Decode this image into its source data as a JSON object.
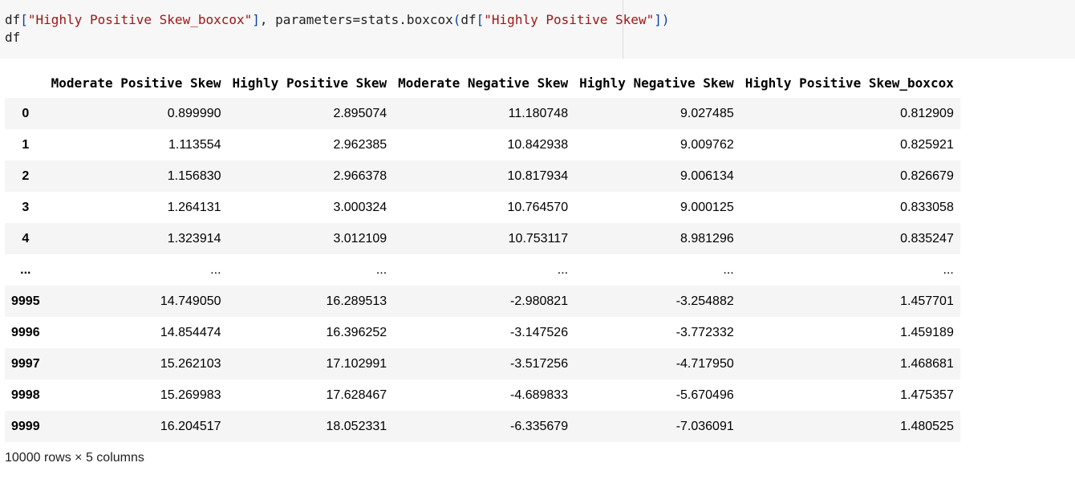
{
  "code": {
    "line1": {
      "t1": "df",
      "t2": "[",
      "t3": "\"Highly Positive Skew_boxcox\"",
      "t4": "]",
      "t5": ", parameters=stats.boxcox",
      "t6": "(",
      "t7": "df",
      "t8": "[",
      "t9": "\"Highly Positive Skew\"",
      "t10": "]",
      "t11": ")"
    },
    "line2": "df"
  },
  "dataframe": {
    "columns": [
      "Moderate Positive Skew",
      "Highly Positive Skew",
      "Moderate Negative Skew",
      "Highly Negative Skew",
      "Highly Positive Skew_boxcox"
    ],
    "rows": [
      {
        "index": "0",
        "values": [
          "0.899990",
          "2.895074",
          "11.180748",
          "9.027485",
          "0.812909"
        ]
      },
      {
        "index": "1",
        "values": [
          "1.113554",
          "2.962385",
          "10.842938",
          "9.009762",
          "0.825921"
        ]
      },
      {
        "index": "2",
        "values": [
          "1.156830",
          "2.966378",
          "10.817934",
          "9.006134",
          "0.826679"
        ]
      },
      {
        "index": "3",
        "values": [
          "1.264131",
          "3.000324",
          "10.764570",
          "9.000125",
          "0.833058"
        ]
      },
      {
        "index": "4",
        "values": [
          "1.323914",
          "3.012109",
          "10.753117",
          "8.981296",
          "0.835247"
        ]
      },
      {
        "index": "...",
        "values": [
          "...",
          "...",
          "...",
          "...",
          "..."
        ]
      },
      {
        "index": "9995",
        "values": [
          "14.749050",
          "16.289513",
          "-2.980821",
          "-3.254882",
          "1.457701"
        ]
      },
      {
        "index": "9996",
        "values": [
          "14.854474",
          "16.396252",
          "-3.147526",
          "-3.772332",
          "1.459189"
        ]
      },
      {
        "index": "9997",
        "values": [
          "15.262103",
          "17.102991",
          "-3.517256",
          "-4.717950",
          "1.468681"
        ]
      },
      {
        "index": "9998",
        "values": [
          "15.269983",
          "17.628467",
          "-4.689833",
          "-5.670496",
          "1.475357"
        ]
      },
      {
        "index": "9999",
        "values": [
          "16.204517",
          "18.052331",
          "-6.335679",
          "-7.036091",
          "1.480525"
        ]
      }
    ]
  },
  "shape_text": "10000 rows × 5 columns",
  "colors": {
    "string": "#a31515",
    "bracket": "#0b3fa5",
    "stripe": "#f5f5f5",
    "code_bg": "#f7f7f7"
  }
}
